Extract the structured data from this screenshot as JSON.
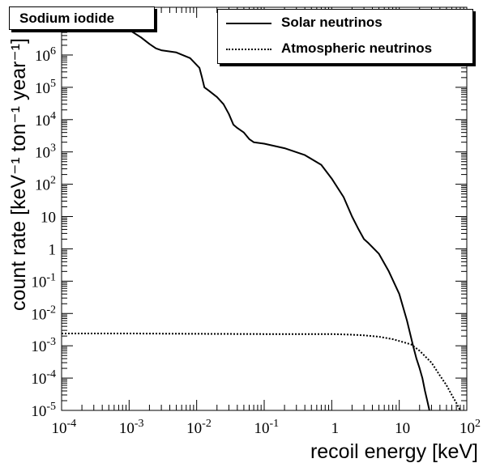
{
  "chart_data": {
    "type": "line",
    "title": "Sodium iodide",
    "xlabel": "recoil energy [keV]",
    "ylabel": "count rate [keV⁻¹ ton⁻¹ year⁻¹]",
    "x_scale": "log",
    "y_scale": "log",
    "xlim": [
      0.0001,
      100
    ],
    "ylim": [
      1e-05,
      30000000
    ],
    "x_ticks": [
      0.0001,
      0.001,
      0.01,
      0.1,
      1,
      10,
      100
    ],
    "x_tick_labels": [
      {
        "base": "10",
        "exp": "-4"
      },
      {
        "base": "10",
        "exp": "-3"
      },
      {
        "base": "10",
        "exp": "-2"
      },
      {
        "base": "10",
        "exp": "-1"
      },
      {
        "base": "1",
        "exp": ""
      },
      {
        "base": "10",
        "exp": ""
      },
      {
        "base": "10",
        "exp": "2"
      }
    ],
    "y_ticks": [
      1e-05,
      0.0001,
      0.001,
      0.01,
      0.1,
      1,
      10,
      100,
      1000,
      10000,
      100000,
      1000000,
      10000000
    ],
    "y_tick_labels": [
      {
        "base": "10",
        "exp": "-5"
      },
      {
        "base": "10",
        "exp": "-4"
      },
      {
        "base": "10",
        "exp": "-3"
      },
      {
        "base": "10",
        "exp": "-2"
      },
      {
        "base": "10",
        "exp": "-1"
      },
      {
        "base": "1",
        "exp": ""
      },
      {
        "base": "10",
        "exp": ""
      },
      {
        "base": "10",
        "exp": "2"
      },
      {
        "base": "10",
        "exp": "3"
      },
      {
        "base": "10",
        "exp": "4"
      },
      {
        "base": "10",
        "exp": "5"
      },
      {
        "base": "10",
        "exp": "6"
      },
      {
        "base": "10",
        "exp": "7"
      }
    ],
    "legend_position": "top-right",
    "grid": false,
    "series": [
      {
        "name": "Solar neutrinos",
        "style": "solid",
        "color": "#000000",
        "x": [
          0.0001,
          0.0002,
          0.0004,
          0.0007,
          0.001,
          0.0015,
          0.002,
          0.0025,
          0.003,
          0.005,
          0.008,
          0.011,
          0.012,
          0.013,
          0.015,
          0.02,
          0.025,
          0.03,
          0.035,
          0.04,
          0.05,
          0.06,
          0.07,
          0.1,
          0.2,
          0.4,
          0.7,
          1,
          1.5,
          2,
          2.5,
          3,
          3.5,
          5,
          7,
          10,
          13,
          16,
          18,
          20,
          22,
          24,
          26,
          28
        ],
        "y": [
          18000000,
          17000000,
          13000000,
          9000000,
          6000000,
          3500000,
          2200000,
          1600000,
          1400000,
          1200000,
          800000,
          400000,
          200000,
          100000,
          80000,
          50000,
          30000,
          15000,
          7000,
          5500,
          4000,
          2500,
          2000,
          1800,
          1300,
          800,
          400,
          150,
          40,
          10,
          4,
          2,
          1.5,
          0.7,
          0.2,
          0.04,
          0.006,
          0.001,
          0.0004,
          0.0002,
          0.0001,
          4e-05,
          2e-05,
          1e-05
        ]
      },
      {
        "name": "Atmospheric neutrinos",
        "style": "dotted",
        "color": "#000000",
        "x": [
          0.0001,
          0.001,
          0.01,
          0.1,
          1,
          2,
          3,
          5,
          8,
          10,
          15,
          20,
          30,
          40,
          50,
          60,
          70,
          80
        ],
        "y": [
          0.0024,
          0.0024,
          0.00235,
          0.0023,
          0.0023,
          0.0022,
          0.0021,
          0.0019,
          0.0016,
          0.0014,
          0.0011,
          0.0007,
          0.0003,
          0.00012,
          6e-05,
          3e-05,
          1.7e-05,
          1e-05
        ]
      }
    ]
  }
}
